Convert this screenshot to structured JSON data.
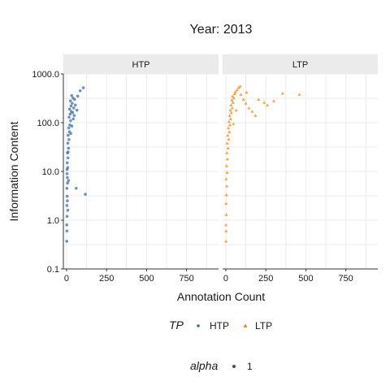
{
  "chart_data": {
    "type": "scatter",
    "title": "Year: 2013",
    "xlabel": "Annotation Count",
    "ylabel": "Information Content",
    "y_scale": "log10",
    "xlim": [
      -20,
      950
    ],
    "ylim": [
      0.1,
      1000
    ],
    "x_ticks": [
      0,
      250,
      500,
      750
    ],
    "x_tick_labels": [
      "0",
      "250",
      "500",
      "750"
    ],
    "y_ticks": [
      0.1,
      1,
      10,
      100,
      1000
    ],
    "y_tick_labels": [
      "0.1",
      "1.0",
      "10.0",
      "100.0",
      "1000.0"
    ],
    "grid": true,
    "legend": {
      "placement": "bottom",
      "color_title": "TP",
      "alpha_title": "alpha",
      "alpha_value_label": "1"
    },
    "colors": {
      "HTP": "#3b6db0",
      "LTP": "#ff7f00"
    },
    "panels": [
      {
        "name": "HTP",
        "marker": "circle",
        "series": [
          {
            "name": "HTP",
            "points": [
              [
                1,
                0.37
              ],
              [
                2,
                0.6
              ],
              [
                1,
                0.8
              ],
              [
                3,
                1.2
              ],
              [
                2,
                2.0
              ],
              [
                4,
                3.1
              ],
              [
                2,
                4.5
              ],
              [
                6,
                5.8
              ],
              [
                5,
                7.5
              ],
              [
                3,
                9.0
              ],
              [
                7,
                12
              ],
              [
                4,
                15
              ],
              [
                9,
                19
              ],
              [
                6,
                24
              ],
              [
                12,
                30
              ],
              [
                8,
                38
              ],
              [
                15,
                45
              ],
              [
                10,
                55
              ],
              [
                18,
                65
              ],
              [
                14,
                78
              ],
              [
                20,
                90
              ],
              [
                25,
                110
              ],
              [
                16,
                130
              ],
              [
                22,
                150
              ],
              [
                30,
                170
              ],
              [
                19,
                190
              ],
              [
                28,
                220
              ],
              [
                35,
                250
              ],
              [
                24,
                280
              ],
              [
                40,
                320
              ],
              [
                32,
                360
              ],
              [
                45,
                200
              ],
              [
                38,
                160
              ],
              [
                55,
                230
              ],
              [
                50,
                300
              ],
              [
                70,
                350
              ],
              [
                85,
                450
              ],
              [
                105,
                520
              ],
              [
                117,
                3.4
              ],
              [
                60,
                4.5
              ],
              [
                5,
                2.5
              ],
              [
                8,
                1.6
              ],
              [
                12,
                6.5
              ],
              [
                3,
                11
              ],
              [
                9,
                25
              ],
              [
                26,
                60
              ],
              [
                33,
                85
              ],
              [
                42,
                120
              ],
              [
                48,
                140
              ],
              [
                65,
                180
              ]
            ]
          }
        ]
      },
      {
        "name": "LTP",
        "marker": "triangle",
        "series": [
          {
            "name": "LTP",
            "points": [
              [
                1,
                0.37
              ],
              [
                2,
                0.6
              ],
              [
                1,
                0.8
              ],
              [
                3,
                1.3
              ],
              [
                2,
                2.2
              ],
              [
                4,
                3.3
              ],
              [
                6,
                5.0
              ],
              [
                3,
                7.0
              ],
              [
                8,
                9.5
              ],
              [
                5,
                13
              ],
              [
                10,
                18
              ],
              [
                7,
                24
              ],
              [
                14,
                30
              ],
              [
                9,
                38
              ],
              [
                18,
                46
              ],
              [
                12,
                55
              ],
              [
                22,
                65
              ],
              [
                16,
                78
              ],
              [
                26,
                90
              ],
              [
                20,
                105
              ],
              [
                30,
                120
              ],
              [
                24,
                140
              ],
              [
                35,
                160
              ],
              [
                28,
                180
              ],
              [
                40,
                200
              ],
              [
                33,
                230
              ],
              [
                45,
                260
              ],
              [
                38,
                290
              ],
              [
                50,
                320
              ],
              [
                42,
                350
              ],
              [
                55,
                390
              ],
              [
                60,
                430
              ],
              [
                70,
                470
              ],
              [
                80,
                520
              ],
              [
                95,
                380
              ],
              [
                110,
                300
              ],
              [
                125,
                250
              ],
              [
                145,
                200
              ],
              [
                165,
                170
              ],
              [
                185,
                140
              ],
              [
                205,
                300
              ],
              [
                240,
                260
              ],
              [
                260,
                230
              ],
              [
                300,
                280
              ],
              [
                355,
                400
              ],
              [
                460,
                380
              ],
              [
                130,
                420
              ],
              [
                90,
                560
              ],
              [
                65,
                180
              ],
              [
                48,
                95
              ]
            ]
          }
        ]
      }
    ]
  }
}
